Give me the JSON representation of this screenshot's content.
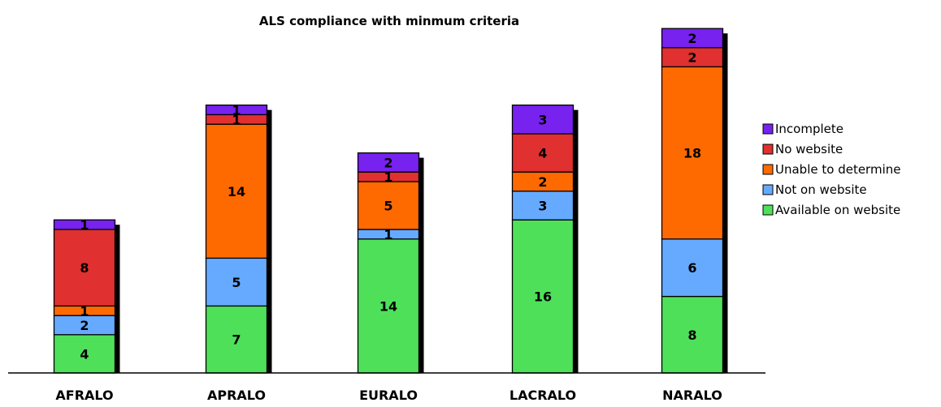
{
  "chart_data": {
    "type": "bar",
    "stacked": true,
    "title": "ALS compliance with minmum criteria",
    "xlabel": "",
    "ylabel": "",
    "categories": [
      "AFRALO",
      "APRALO",
      "EURALO",
      "LACRALO",
      "NARALO"
    ],
    "series": [
      {
        "name": "Available on website",
        "color": "#4fe05a",
        "values": [
          4,
          7,
          14,
          16,
          8
        ]
      },
      {
        "name": "Not on website",
        "color": "#66aaff",
        "values": [
          2,
          5,
          1,
          3,
          6
        ]
      },
      {
        "name": "Unable to determine",
        "color": "#ff6a00",
        "values": [
          1,
          14,
          5,
          2,
          18
        ]
      },
      {
        "name": "No website",
        "color": "#e03030",
        "values": [
          8,
          1,
          1,
          4,
          2
        ]
      },
      {
        "name": "Incomplete",
        "color": "#7722ee",
        "values": [
          1,
          1,
          2,
          3,
          2
        ]
      }
    ],
    "ylim": [
      0,
      36
    ],
    "grid": false,
    "legend_position": "right",
    "shadow": true
  }
}
